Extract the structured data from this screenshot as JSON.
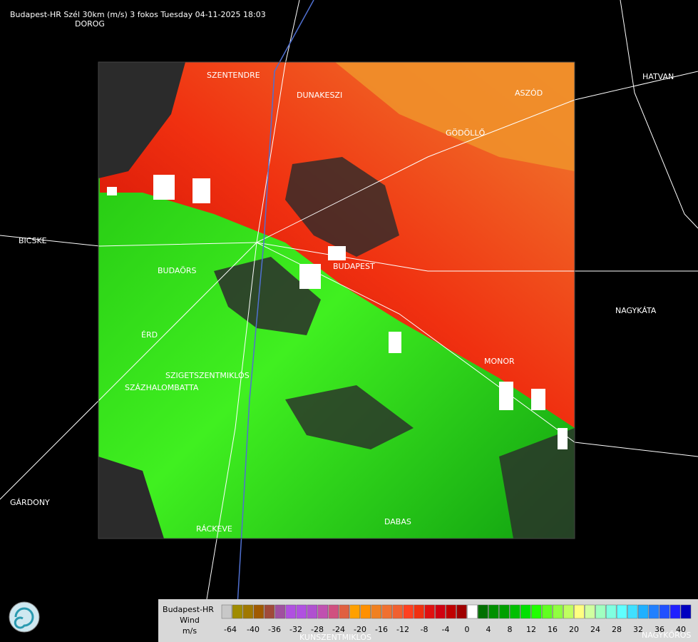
{
  "title": "Budapest-HR Szél 30km (m/s) 3 fokos Tuesday 04-11-2025 18:03",
  "places": [
    "DOROG",
    "SZENTENDRE",
    "DUNAKESZI",
    "HATVAN",
    "ASZÓD",
    "GÖDÖLLŐ",
    "BICSKE",
    "BUDAÖRS",
    "BUDAPEST",
    "NAGYKÁTA",
    "ÉRD",
    "MONOR",
    "SZIGETSZENTMIKLÓS",
    "SZÁZHALOMBATTA",
    "GÁRDONY",
    "RÁCKEVE",
    "DABAS",
    "KUNSZENTMIKLÓS",
    "NAGYKŐRÖS"
  ],
  "legend": {
    "lines": [
      "Budapest-HR",
      "Wind",
      "m/s"
    ],
    "ticks": [
      -64,
      -40,
      -36,
      -32,
      -28,
      -24,
      -20,
      -16,
      -12,
      -8,
      -4,
      0,
      4,
      8,
      12,
      16,
      20,
      24,
      28,
      32,
      36,
      40
    ],
    "colors": [
      "#c8c8c8",
      "#a08c00",
      "#a07800",
      "#a05a00",
      "#a04a3a",
      "#a050a0",
      "#b050e0",
      "#b050e0",
      "#b050d0",
      "#c050b0",
      "#d05080",
      "#e06040",
      "#ffa000",
      "#ff9000",
      "#f08020",
      "#f07030",
      "#f06030",
      "#ff4020",
      "#f03010",
      "#e01010",
      "#d00010",
      "#c00000",
      "#a00000",
      "#ffffff",
      "#007000",
      "#009000",
      "#00a000",
      "#00c000",
      "#00e000",
      "#20ff00",
      "#60ff20",
      "#90ff40",
      "#c0ff60",
      "#ffff80",
      "#d0ffa0",
      "#a0ffc0",
      "#80ffe0",
      "#60ffff",
      "#40e0ff",
      "#20b0ff",
      "#2080ff",
      "#2050ff",
      "#2020ff",
      "#0000c0"
    ]
  }
}
